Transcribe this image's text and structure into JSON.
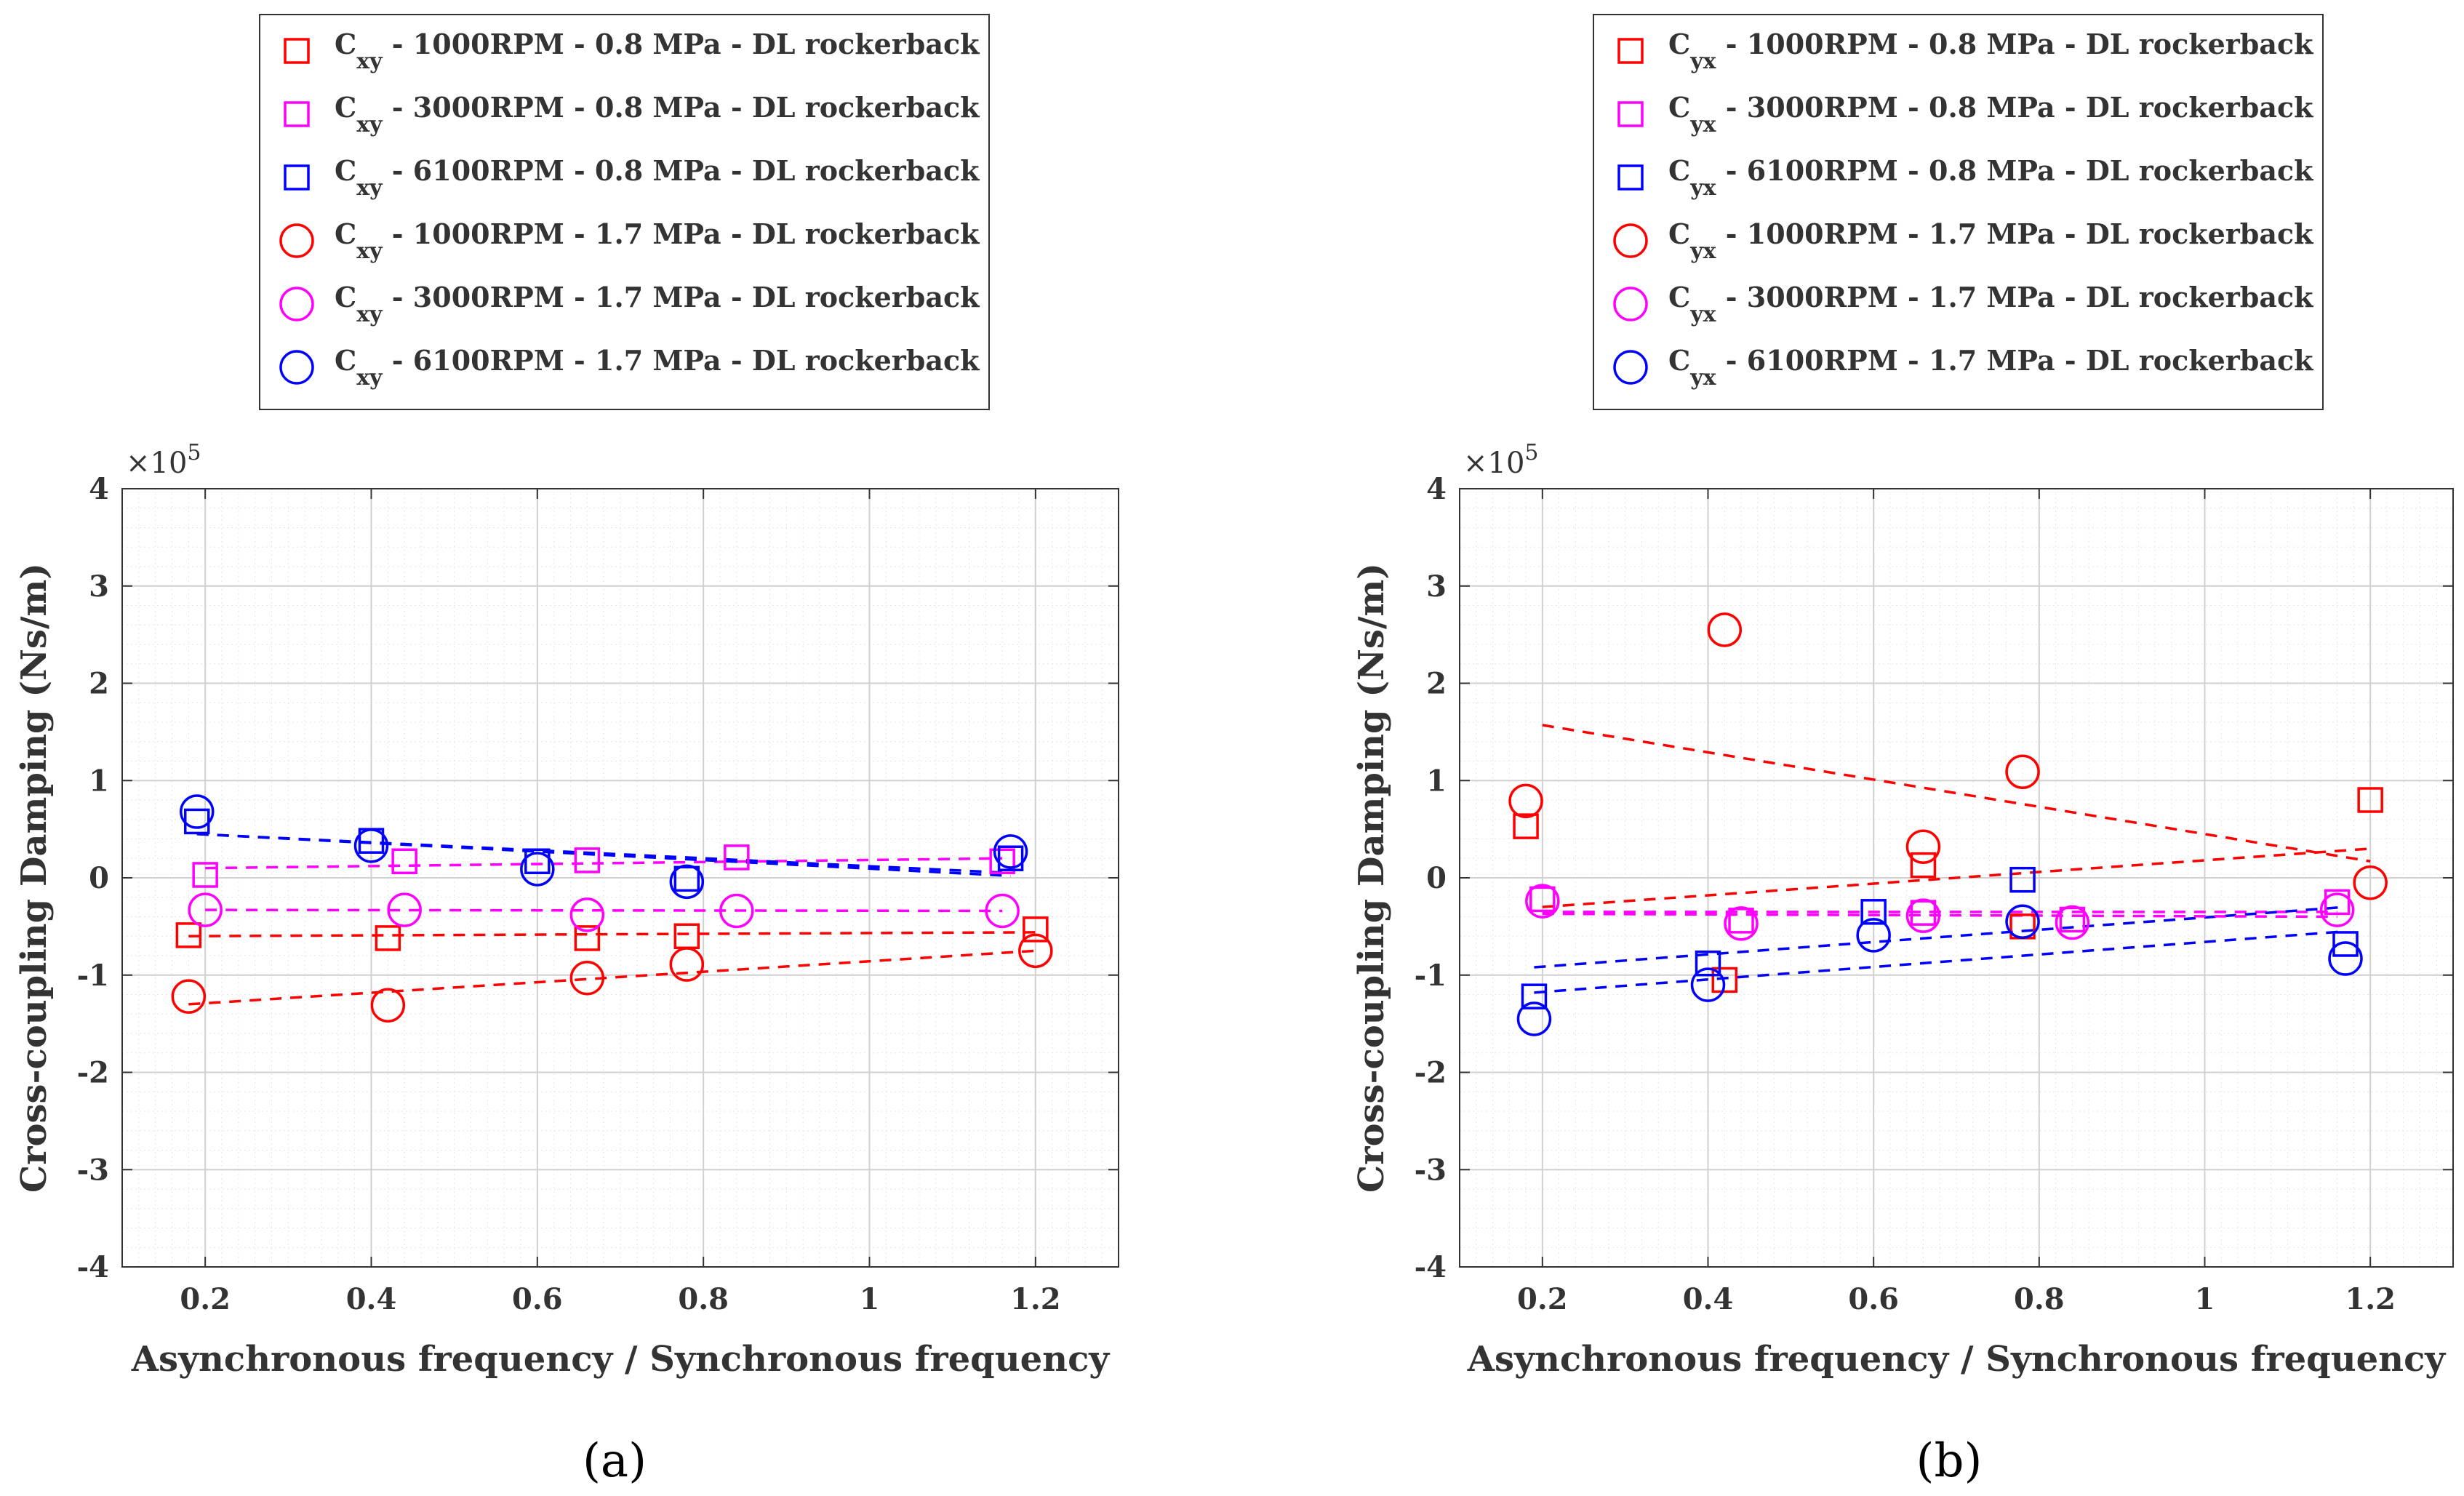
{
  "figure": {
    "panel_labels": [
      "(a)",
      "(b)"
    ]
  },
  "chart_data": [
    {
      "type": "scatter",
      "panel": "(a)",
      "xlabel": "Asynchronous frequency / Synchronous frequency",
      "ylabel": "Cross-coupling Damping (Ns/m)",
      "y_multiplier": "×10",
      "y_multiplier_exp": "5",
      "xlim": [
        0.1,
        1.3
      ],
      "ylim": [
        -4,
        4
      ],
      "xticks": [
        0.2,
        0.4,
        0.6,
        0.8,
        1,
        1.2
      ],
      "yticks": [
        -4,
        -3,
        -2,
        -1,
        0,
        1,
        2,
        3,
        4
      ],
      "xtick_labels": [
        "0.2",
        "0.4",
        "0.6",
        "0.8",
        "1",
        "1.2"
      ],
      "ytick_labels": [
        "-4",
        "-3",
        "-2",
        "-1",
        "0",
        "1",
        "2",
        "3",
        "4"
      ],
      "grid": true,
      "minor_grid": true,
      "legend_position": "above plot, centered",
      "series": [
        {
          "coef": "C",
          "sub": "xy",
          "label": " - 1000RPM - 0.8 MPa - DL rockerback",
          "marker": "square",
          "color": "#ff0000",
          "points": [
            [
              0.18,
              -0.59
            ],
            [
              0.42,
              -0.62
            ],
            [
              0.66,
              -0.62
            ],
            [
              0.78,
              -0.6
            ],
            [
              1.2,
              -0.53
            ]
          ],
          "fit": [
            [
              0.18,
              -0.6
            ],
            [
              1.2,
              -0.56
            ]
          ]
        },
        {
          "coef": "C",
          "sub": "xy",
          "label": " - 3000RPM - 0.8 MPa - DL rockerback",
          "marker": "square",
          "color": "#ff00ff",
          "points": [
            [
              0.2,
              0.03
            ],
            [
              0.44,
              0.17
            ],
            [
              0.66,
              0.18
            ],
            [
              0.84,
              0.21
            ],
            [
              1.16,
              0.17
            ]
          ],
          "fit": [
            [
              0.2,
              0.1
            ],
            [
              1.16,
              0.2
            ]
          ]
        },
        {
          "coef": "C",
          "sub": "xy",
          "label": " - 6100RPM - 0.8 MPa - DL rockerback",
          "marker": "square",
          "color": "#0000ff",
          "points": [
            [
              0.19,
              0.58
            ],
            [
              0.4,
              0.38
            ],
            [
              0.6,
              0.17
            ],
            [
              0.78,
              -0.01
            ],
            [
              1.17,
              0.2
            ]
          ],
          "fit": [
            [
              0.19,
              0.45
            ],
            [
              1.17,
              0.02
            ]
          ]
        },
        {
          "coef": "C",
          "sub": "xy",
          "label": " - 1000RPM - 1.7 MPa - DL rockerback",
          "marker": "circle",
          "color": "#ff0000",
          "points": [
            [
              0.18,
              -1.22
            ],
            [
              0.42,
              -1.31
            ],
            [
              0.66,
              -1.03
            ],
            [
              0.78,
              -0.89
            ],
            [
              1.2,
              -0.75
            ]
          ],
          "fit": [
            [
              0.18,
              -1.3
            ],
            [
              1.2,
              -0.75
            ]
          ]
        },
        {
          "coef": "C",
          "sub": "xy",
          "label": " - 3000RPM - 1.7 MPa - DL rockerback",
          "marker": "circle",
          "color": "#ff00ff",
          "points": [
            [
              0.2,
              -0.33
            ],
            [
              0.44,
              -0.33
            ],
            [
              0.66,
              -0.38
            ],
            [
              0.84,
              -0.34
            ],
            [
              1.16,
              -0.34
            ]
          ],
          "fit": [
            [
              0.2,
              -0.33
            ],
            [
              1.16,
              -0.34
            ]
          ]
        },
        {
          "coef": "C",
          "sub": "xy",
          "label": " - 6100RPM - 1.7 MPa - DL rockerback",
          "marker": "circle",
          "color": "#0000ff",
          "points": [
            [
              0.19,
              0.68
            ],
            [
              0.4,
              0.33
            ],
            [
              0.6,
              0.09
            ],
            [
              0.78,
              -0.04
            ],
            [
              1.17,
              0.27
            ]
          ],
          "fit": [
            [
              0.19,
              0.45
            ],
            [
              1.17,
              0.05
            ]
          ]
        }
      ]
    },
    {
      "type": "scatter",
      "panel": "(b)",
      "xlabel": "Asynchronous frequency / Synchronous frequency",
      "ylabel": "Cross-coupling Damping (Ns/m)",
      "y_multiplier": "×10",
      "y_multiplier_exp": "5",
      "xlim": [
        0.1,
        1.3
      ],
      "ylim": [
        -4,
        4
      ],
      "xticks": [
        0.2,
        0.4,
        0.6,
        0.8,
        1,
        1.2
      ],
      "yticks": [
        -4,
        -3,
        -2,
        -1,
        0,
        1,
        2,
        3,
        4
      ],
      "xtick_labels": [
        "0.2",
        "0.4",
        "0.6",
        "0.8",
        "1",
        "1.2"
      ],
      "ytick_labels": [
        "-4",
        "-3",
        "-2",
        "-1",
        "0",
        "1",
        "2",
        "3",
        "4"
      ],
      "grid": true,
      "minor_grid": true,
      "legend_position": "above plot, centered",
      "series": [
        {
          "coef": "C",
          "sub": "yx",
          "label": " - 1000RPM - 0.8 MPa - DL rockerback",
          "marker": "square",
          "color": "#ff0000",
          "points": [
            [
              0.18,
              0.53
            ],
            [
              0.42,
              -1.05
            ],
            [
              0.66,
              0.13
            ],
            [
              0.78,
              -0.5
            ],
            [
              1.2,
              0.8
            ]
          ],
          "fit": [
            [
              0.2,
              -0.3
            ],
            [
              1.2,
              0.3
            ]
          ]
        },
        {
          "coef": "C",
          "sub": "yx",
          "label": " - 3000RPM - 0.8 MPa - DL rockerback",
          "marker": "square",
          "color": "#ff00ff",
          "points": [
            [
              0.2,
              -0.22
            ],
            [
              0.44,
              -0.44
            ],
            [
              0.66,
              -0.36
            ],
            [
              0.84,
              -0.43
            ],
            [
              1.16,
              -0.25
            ]
          ],
          "fit": [
            [
              0.2,
              -0.35
            ],
            [
              1.16,
              -0.35
            ]
          ]
        },
        {
          "coef": "C",
          "sub": "yx",
          "label": " - 6100RPM - 0.8 MPa - DL rockerback",
          "marker": "square",
          "color": "#0000ff",
          "points": [
            [
              0.19,
              -1.22
            ],
            [
              0.4,
              -0.88
            ],
            [
              0.6,
              -0.35
            ],
            [
              0.78,
              -0.02
            ],
            [
              1.17,
              -0.68
            ]
          ],
          "fit": [
            [
              0.19,
              -0.92
            ],
            [
              1.17,
              -0.3
            ]
          ]
        },
        {
          "coef": "C",
          "sub": "yx",
          "label": " - 1000RPM - 1.7 MPa - DL rockerback",
          "marker": "circle",
          "color": "#ff0000",
          "points": [
            [
              0.18,
              0.79
            ],
            [
              0.42,
              2.55
            ],
            [
              0.66,
              0.32
            ],
            [
              0.78,
              1.09
            ],
            [
              1.2,
              -0.05
            ]
          ],
          "fit": [
            [
              0.2,
              1.57
            ],
            [
              1.2,
              0.17
            ]
          ]
        },
        {
          "coef": "C",
          "sub": "yx",
          "label": " - 3000RPM - 1.7 MPa - DL rockerback",
          "marker": "circle",
          "color": "#ff00ff",
          "points": [
            [
              0.2,
              -0.24
            ],
            [
              0.44,
              -0.47
            ],
            [
              0.66,
              -0.39
            ],
            [
              0.84,
              -0.46
            ],
            [
              1.16,
              -0.33
            ]
          ],
          "fit": [
            [
              0.2,
              -0.37
            ],
            [
              1.16,
              -0.4
            ]
          ]
        },
        {
          "coef": "C",
          "sub": "yx",
          "label": " - 6100RPM - 1.7 MPa - DL rockerback",
          "marker": "circle",
          "color": "#0000ff",
          "points": [
            [
              0.19,
              -1.45
            ],
            [
              0.4,
              -1.1
            ],
            [
              0.6,
              -0.59
            ],
            [
              0.78,
              -0.45
            ],
            [
              1.17,
              -0.83
            ]
          ],
          "fit": [
            [
              0.19,
              -1.18
            ],
            [
              1.17,
              -0.55
            ]
          ]
        }
      ]
    }
  ]
}
